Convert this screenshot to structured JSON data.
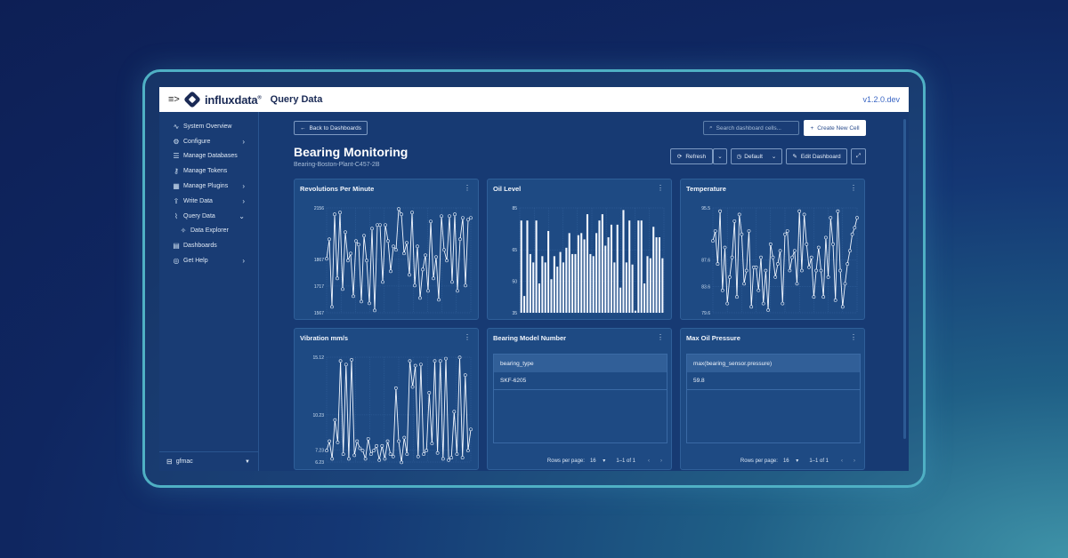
{
  "topbar": {
    "brand": "influxdata",
    "brand_mark": "®",
    "app_title": "Query Data",
    "version": "v1.2.0.dev"
  },
  "sidebar": {
    "items": [
      {
        "icon": "activity-icon",
        "glyph": "∿",
        "label": "System Overview"
      },
      {
        "icon": "gear-icon",
        "glyph": "⚙",
        "label": "Configure",
        "chevron": "›"
      },
      {
        "icon": "database-icon",
        "glyph": "☰",
        "label": "Manage Databases"
      },
      {
        "icon": "key-icon",
        "glyph": "⚷",
        "label": "Manage Tokens"
      },
      {
        "icon": "plugin-icon",
        "glyph": "▦",
        "label": "Manage Plugins",
        "chevron": "›"
      },
      {
        "icon": "upload-icon",
        "glyph": "⇪",
        "label": "Write Data",
        "chevron": "›"
      },
      {
        "icon": "chart-icon",
        "glyph": "⌇",
        "label": "Query Data",
        "chevron": "⌄"
      },
      {
        "icon": "explore-icon",
        "glyph": "✧",
        "label": "Data Explorer",
        "sub": true
      },
      {
        "icon": "dashboard-icon",
        "glyph": "▤",
        "label": "Dashboards"
      },
      {
        "icon": "help-icon",
        "glyph": "◎",
        "label": "Get Help",
        "chevron": "›"
      }
    ],
    "user": "gfmac"
  },
  "toolbar": {
    "back": "Back to Dashboards",
    "search_placeholder": "Search dashboard cells...",
    "create": "Create New Cell",
    "refresh": "Refresh",
    "default": "Default",
    "edit": "Edit Dashboard"
  },
  "dashboard": {
    "title": "Bearing Monitoring",
    "subtitle": "Bearing-Boston-Plant-C457-2B"
  },
  "panels": {
    "rpm": {
      "title": "Revolutions Per Minute"
    },
    "oil": {
      "title": "Oil Level"
    },
    "temp": {
      "title": "Temperature"
    },
    "vib": {
      "title": "Vibration mm/s"
    },
    "model": {
      "title": "Bearing Model Number",
      "header": "bearing_type",
      "value": "SKF-6205"
    },
    "pressure": {
      "title": "Max Oil Pressure",
      "header": "max(bearing_sensor.pressure)",
      "value": "59.8"
    }
  },
  "pager": {
    "label": "Rows per page:",
    "count": "16",
    "range": "1–1 of 1"
  },
  "chart_data": [
    {
      "type": "line",
      "title": "Revolutions Per Minute",
      "yticks": [
        1567,
        1717,
        1867,
        2156
      ],
      "ylim": [
        1567,
        2156
      ],
      "values": [
        1870,
        1980,
        1600,
        2120,
        1760,
        2130,
        1700,
        2020,
        1860,
        1900,
        1660,
        1970,
        1950,
        1630,
        2000,
        1860,
        1620,
        2040,
        1580,
        2060,
        2060,
        1740,
        2060,
        1970,
        1800,
        1940,
        1920,
        2150,
        2120,
        1900,
        1960,
        1780,
        2130,
        1720,
        1940,
        1650,
        1810,
        1890,
        1690,
        2080,
        1760,
        1880,
        1640,
        2110,
        1920,
        1860,
        2110,
        1740,
        2120,
        1690,
        1980,
        2100,
        1720,
        2090,
        2100
      ]
    },
    {
      "type": "bar",
      "title": "Oil Level",
      "yticks": [
        35,
        50,
        65,
        85
      ],
      "ylim": [
        35,
        85
      ],
      "values": [
        79,
        43,
        79,
        63,
        59,
        79,
        49,
        62,
        59,
        74,
        51,
        62,
        57,
        64,
        59,
        66,
        73,
        63,
        63,
        72,
        73,
        70,
        82,
        63,
        62,
        73,
        79,
        82,
        67,
        71,
        77,
        59,
        77,
        47,
        84,
        59,
        79,
        58,
        36,
        79,
        79,
        49,
        62,
        61,
        76,
        71,
        71,
        61
      ]
    },
    {
      "type": "line",
      "title": "Temperature",
      "yticks": [
        79.6,
        83.6,
        87.6,
        95.5
      ],
      "ylim": [
        79.6,
        95.5
      ],
      "values": [
        90.5,
        92,
        87,
        95,
        83,
        89.5,
        81,
        85,
        88,
        93.5,
        82,
        94.5,
        91.5,
        84,
        86,
        92,
        80.5,
        86.5,
        86.5,
        83,
        88,
        81,
        86,
        80,
        90,
        88,
        85,
        87,
        89,
        81,
        91.5,
        92,
        86,
        88,
        89,
        84,
        95,
        86,
        94.5,
        90,
        86.5,
        88,
        82,
        86,
        89.5,
        86,
        82,
        91,
        85,
        94,
        90,
        81.5,
        95,
        86,
        80.5,
        84,
        87,
        89,
        91.5,
        92.5,
        94
      ]
    },
    {
      "type": "line",
      "title": "Vibration mm/s",
      "yticks": [
        6.23,
        7.23,
        10.23,
        15.12
      ],
      "ylim": [
        6.23,
        15.12
      ],
      "values": [
        7.2,
        8,
        6.5,
        9.8,
        7.9,
        14.8,
        6.9,
        14.5,
        6.5,
        14.9,
        6.8,
        8,
        7.4,
        7.2,
        6.5,
        8.2,
        6.9,
        7.2,
        7.6,
        6.4,
        7.6,
        6.5,
        8,
        6.9,
        6.7,
        12.5,
        8,
        6.2,
        8.3,
        6.9,
        14.8,
        12.6,
        14.4,
        6.7,
        14.5,
        6.9,
        7.2,
        12.1,
        7.8,
        14.8,
        7,
        14.8,
        6.5,
        15,
        6.4,
        6.6,
        10.5,
        6.9,
        15.1,
        6.6,
        13.6,
        7.2,
        9
      ]
    }
  ]
}
